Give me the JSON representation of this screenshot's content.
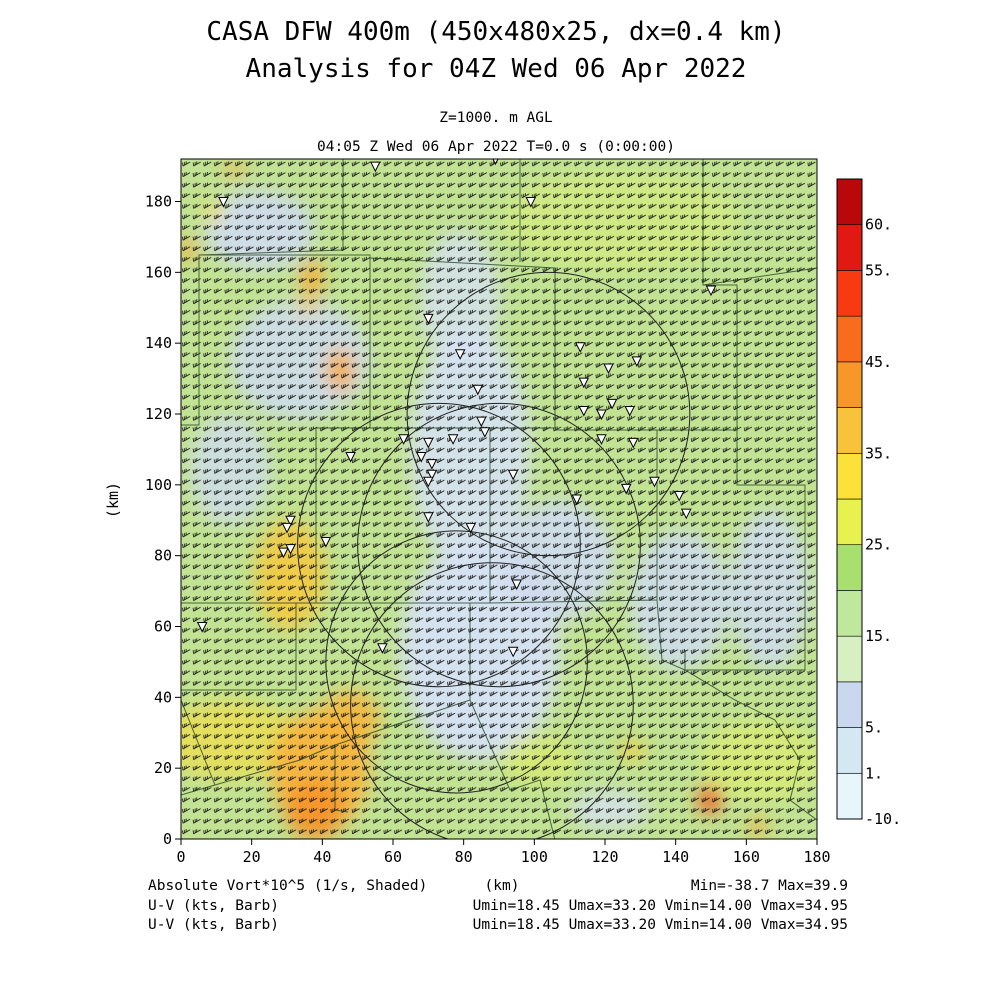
{
  "title": {
    "line1": "CASA DFW 400m (450x480x25, dx=0.4 km)",
    "line2": "Analysis for 04Z Wed 06 Apr 2022"
  },
  "subtitle": {
    "level": "Z=1000. m AGL",
    "time": "04:05 Z Wed 06 Apr 2022    T=0.0 s (0:00:00)"
  },
  "footer": {
    "field1": "Absolute Vort*10^5 (1/s, Shaded)",
    "field2": "U-V (kts, Barb)",
    "field3": "U-V (kts, Barb)",
    "xunit": "(km)",
    "minmax": "Min=-38.7 Max=39.9",
    "stats2": "Umin=18.45 Umax=33.20 Vmin=14.00 Vmax=34.95",
    "stats3": "Umin=18.45 Umax=33.20 Vmin=14.00 Vmax=34.95"
  },
  "chart_data": {
    "type": "heatmap",
    "xlabel": "",
    "ylabel": "(km)",
    "xlim": [
      0,
      180
    ],
    "ylim": [
      0,
      192
    ],
    "x_ticks": [
      0,
      20,
      40,
      60,
      80,
      100,
      120,
      140,
      160,
      180
    ],
    "y_ticks": [
      0,
      20,
      40,
      60,
      80,
      100,
      120,
      140,
      160,
      180
    ],
    "colorbar": {
      "levels": [
        -10,
        1,
        5,
        10,
        15,
        20,
        25,
        30,
        35,
        40,
        45,
        50,
        55,
        60
      ],
      "labels": [
        "60.",
        "55.",
        "45.",
        "35.",
        "25.",
        "15.",
        "5.",
        "1.",
        "-10."
      ],
      "label_values": [
        60,
        55,
        45,
        35,
        25,
        15,
        5,
        1,
        -10
      ],
      "colors": [
        "#e6f6fb",
        "#d3e8f3",
        "#c9d7ef",
        "#d7f0c2",
        "#bfe89d",
        "#a8e070",
        "#e8f24f",
        "#fbe13a",
        "#f8c23a",
        "#f7972a",
        "#f86d1c",
        "#f83a12",
        "#e01a12",
        "#b8080a"
      ]
    },
    "field_min": -38.7,
    "field_max": 39.9,
    "wind_barbs": {
      "umin": 18.45,
      "umax": 33.2,
      "vmin": 14.0,
      "vmax": 34.95,
      "units": "kts"
    },
    "radar_range_circles": [
      {
        "center_km": [
          78,
          50
        ],
        "radius_km": 37
      },
      {
        "center_km": [
          88,
          38
        ],
        "radius_km": 40
      },
      {
        "center_km": [
          90,
          83
        ],
        "radius_km": 40
      },
      {
        "center_km": [
          104,
          120
        ],
        "radius_km": 40
      },
      {
        "center_km": [
          73,
          83
        ],
        "radius_km": 40
      }
    ],
    "stations_km": [
      [
        55,
        190
      ],
      [
        89,
        192
      ],
      [
        12,
        180
      ],
      [
        99,
        180
      ],
      [
        150,
        155
      ],
      [
        70,
        147
      ],
      [
        79,
        137
      ],
      [
        113,
        139
      ],
      [
        129,
        135
      ],
      [
        114,
        129
      ],
      [
        121,
        133
      ],
      [
        84,
        127
      ],
      [
        122,
        123
      ],
      [
        114,
        121
      ],
      [
        119,
        120
      ],
      [
        127,
        121
      ],
      [
        85,
        118
      ],
      [
        86,
        115
      ],
      [
        63,
        113
      ],
      [
        70,
        112
      ],
      [
        77,
        113
      ],
      [
        119,
        113
      ],
      [
        128,
        112
      ],
      [
        68,
        108
      ],
      [
        71,
        106
      ],
      [
        48,
        108
      ],
      [
        71,
        103
      ],
      [
        94,
        103
      ],
      [
        70,
        101
      ],
      [
        134,
        101
      ],
      [
        126,
        99
      ],
      [
        112,
        96
      ],
      [
        141,
        97
      ],
      [
        143,
        92
      ],
      [
        70,
        91
      ],
      [
        82,
        88
      ],
      [
        31,
        90
      ],
      [
        30,
        88
      ],
      [
        41,
        84
      ],
      [
        29,
        81
      ],
      [
        31,
        82
      ],
      [
        95,
        72
      ],
      [
        6,
        60
      ],
      [
        57,
        54
      ],
      [
        94,
        53
      ]
    ],
    "annotations": []
  }
}
